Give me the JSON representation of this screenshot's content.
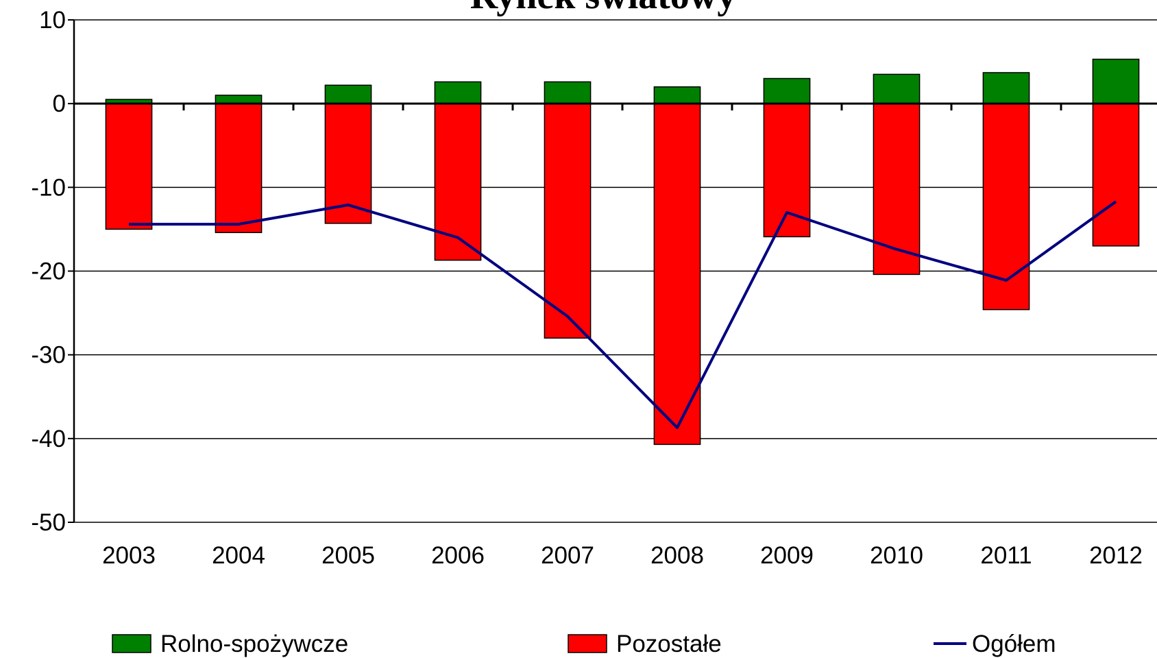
{
  "chart_data": {
    "type": "bar",
    "title": "Rynek światowy",
    "categories": [
      "2003",
      "2004",
      "2005",
      "2006",
      "2007",
      "2008",
      "2009",
      "2010",
      "2011",
      "2012"
    ],
    "series": [
      {
        "name": "Rolno-spożywcze",
        "color": "#008000",
        "type": "bar",
        "values": [
          0.5,
          1.0,
          2.2,
          2.6,
          2.6,
          2.0,
          3.0,
          3.5,
          3.7,
          5.3
        ]
      },
      {
        "name": "Pozostałe",
        "color": "#ff0000",
        "type": "bar",
        "values": [
          -15.0,
          -15.4,
          -14.3,
          -18.7,
          -28.0,
          -40.7,
          -15.9,
          -20.4,
          -24.6,
          -17.0
        ]
      },
      {
        "name": "Ogółem",
        "color": "#000080",
        "type": "line",
        "values": [
          -14.4,
          -14.4,
          -12.1,
          -16.0,
          -25.4,
          -38.7,
          -13.0,
          -17.4,
          -21.1,
          -11.7
        ]
      }
    ],
    "ylim": [
      -50,
      10
    ],
    "yticks": [
      10,
      0,
      -10,
      -20,
      -30,
      -40,
      -50
    ],
    "grid": true,
    "legend": "bottom"
  }
}
